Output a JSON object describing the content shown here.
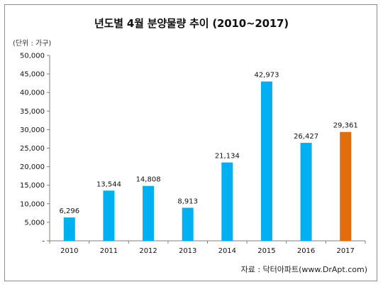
{
  "chart_data": {
    "type": "bar",
    "title": "년도별  4월 분양물량 추이 (2010~2017)",
    "unit_label": "(단위 : 가구)",
    "source": "자료 : 닥터아파트(www.DrApt.com)",
    "categories": [
      "2010",
      "2011",
      "2012",
      "2013",
      "2014",
      "2015",
      "2016",
      "2017"
    ],
    "values": [
      6296,
      13544,
      14808,
      8913,
      21134,
      42973,
      26427,
      29361
    ],
    "value_labels": [
      "6,296",
      "13,544",
      "14,808",
      "8,913",
      "21,134",
      "42,973",
      "26,427",
      "29,361"
    ],
    "ylim": [
      0,
      50000
    ],
    "yticks": [
      0,
      5000,
      10000,
      15000,
      20000,
      25000,
      30000,
      35000,
      40000,
      45000,
      50000
    ],
    "ytick_labels": [
      "-",
      "5,000",
      "10,000",
      "15,000",
      "20,000",
      "25,000",
      "30,000",
      "35,000",
      "40,000",
      "45,000",
      "50,000"
    ],
    "colors": {
      "bar": "#00b0f0",
      "highlight": "#e46c0a",
      "axis": "#7f7f7f"
    },
    "highlight_index": 7,
    "grid": false
  }
}
